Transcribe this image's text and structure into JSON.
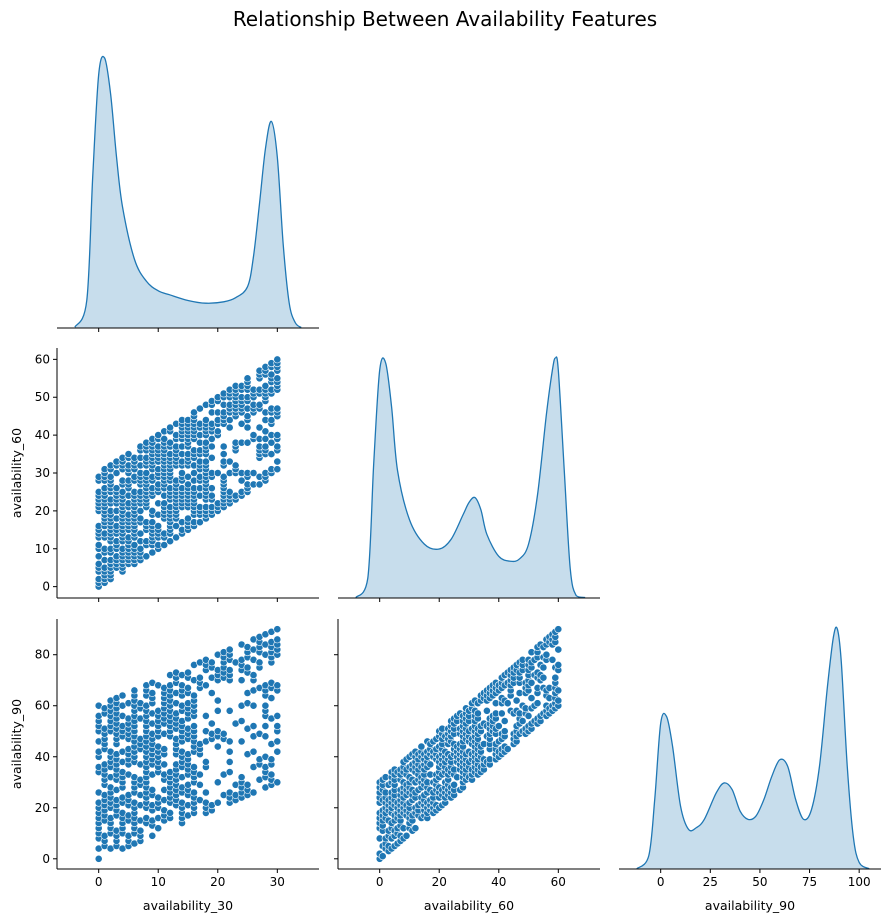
{
  "chart_data": {
    "type": "pairplot",
    "title": "Relationship Between Availability Features",
    "variables": [
      "availability_30",
      "availability_60",
      "availability_90"
    ],
    "corner": true,
    "diagonal": "kde",
    "offdiagonal": "scatter",
    "color": "#1f77b4",
    "grid": false,
    "axes": {
      "availability_30": {
        "lim": [
          -7,
          37
        ],
        "ticks": [
          0,
          10,
          20,
          30
        ]
      },
      "availability_60": {
        "lim": [
          -14,
          74
        ],
        "ticks": [
          0,
          20,
          40,
          60
        ]
      },
      "availability_60_y": {
        "lim": [
          -3,
          63
        ],
        "ticks": [
          0,
          10,
          20,
          30,
          40,
          50,
          60
        ]
      },
      "availability_90": {
        "lim": [
          -21,
          111
        ],
        "ticks": [
          0,
          25,
          50,
          75,
          100
        ]
      },
      "availability_90_y": {
        "lim": [
          -4,
          94
        ],
        "ticks": [
          0,
          20,
          40,
          60,
          80
        ]
      }
    },
    "kde": {
      "availability_30": {
        "x": [
          -4,
          -2,
          -1,
          0,
          1,
          2,
          3,
          4,
          6,
          8,
          10,
          12,
          15,
          18,
          21,
          23,
          25,
          26,
          27,
          28,
          29,
          30,
          31,
          32,
          33,
          34
        ],
        "density": [
          0.003,
          0.1,
          0.55,
          0.92,
          0.98,
          0.85,
          0.62,
          0.44,
          0.25,
          0.17,
          0.135,
          0.12,
          0.1,
          0.09,
          0.095,
          0.11,
          0.15,
          0.26,
          0.45,
          0.65,
          0.75,
          0.62,
          0.3,
          0.09,
          0.02,
          0.002
        ]
      },
      "availability_60": {
        "x": [
          -8,
          -4,
          -2,
          0,
          2,
          4,
          6,
          10,
          15,
          20,
          24,
          28,
          30,
          32,
          34,
          36,
          40,
          44,
          47,
          50,
          53,
          56,
          58,
          59,
          60,
          62,
          64,
          66,
          69
        ],
        "density": [
          0.002,
          0.08,
          0.55,
          0.93,
          0.96,
          0.78,
          0.52,
          0.32,
          0.22,
          0.2,
          0.24,
          0.34,
          0.39,
          0.41,
          0.36,
          0.26,
          0.17,
          0.15,
          0.16,
          0.22,
          0.42,
          0.75,
          0.93,
          0.98,
          0.93,
          0.52,
          0.12,
          0.01,
          0.002
        ]
      },
      "availability_90": {
        "x": [
          -12,
          -6,
          -3,
          0,
          3,
          6,
          10,
          14,
          18,
          22,
          28,
          32,
          36,
          40,
          44,
          48,
          52,
          56,
          60,
          64,
          68,
          72,
          76,
          80,
          84,
          87,
          89,
          91,
          94,
          97,
          100,
          105
        ],
        "density": [
          0.002,
          0.08,
          0.42,
          0.88,
          0.92,
          0.74,
          0.38,
          0.24,
          0.25,
          0.3,
          0.46,
          0.52,
          0.48,
          0.35,
          0.3,
          0.32,
          0.42,
          0.56,
          0.66,
          0.62,
          0.42,
          0.3,
          0.36,
          0.62,
          1.1,
          1.4,
          1.45,
          1.25,
          0.62,
          0.2,
          0.04,
          0.002
        ]
      }
    },
    "scatter_description": "parallelogram-shaped joint distributions: availability_60 between availability_30 and availability_30+30; availability_90 between availability_30 and availability_30+60 and between availability_60 and availability_60+30"
  }
}
